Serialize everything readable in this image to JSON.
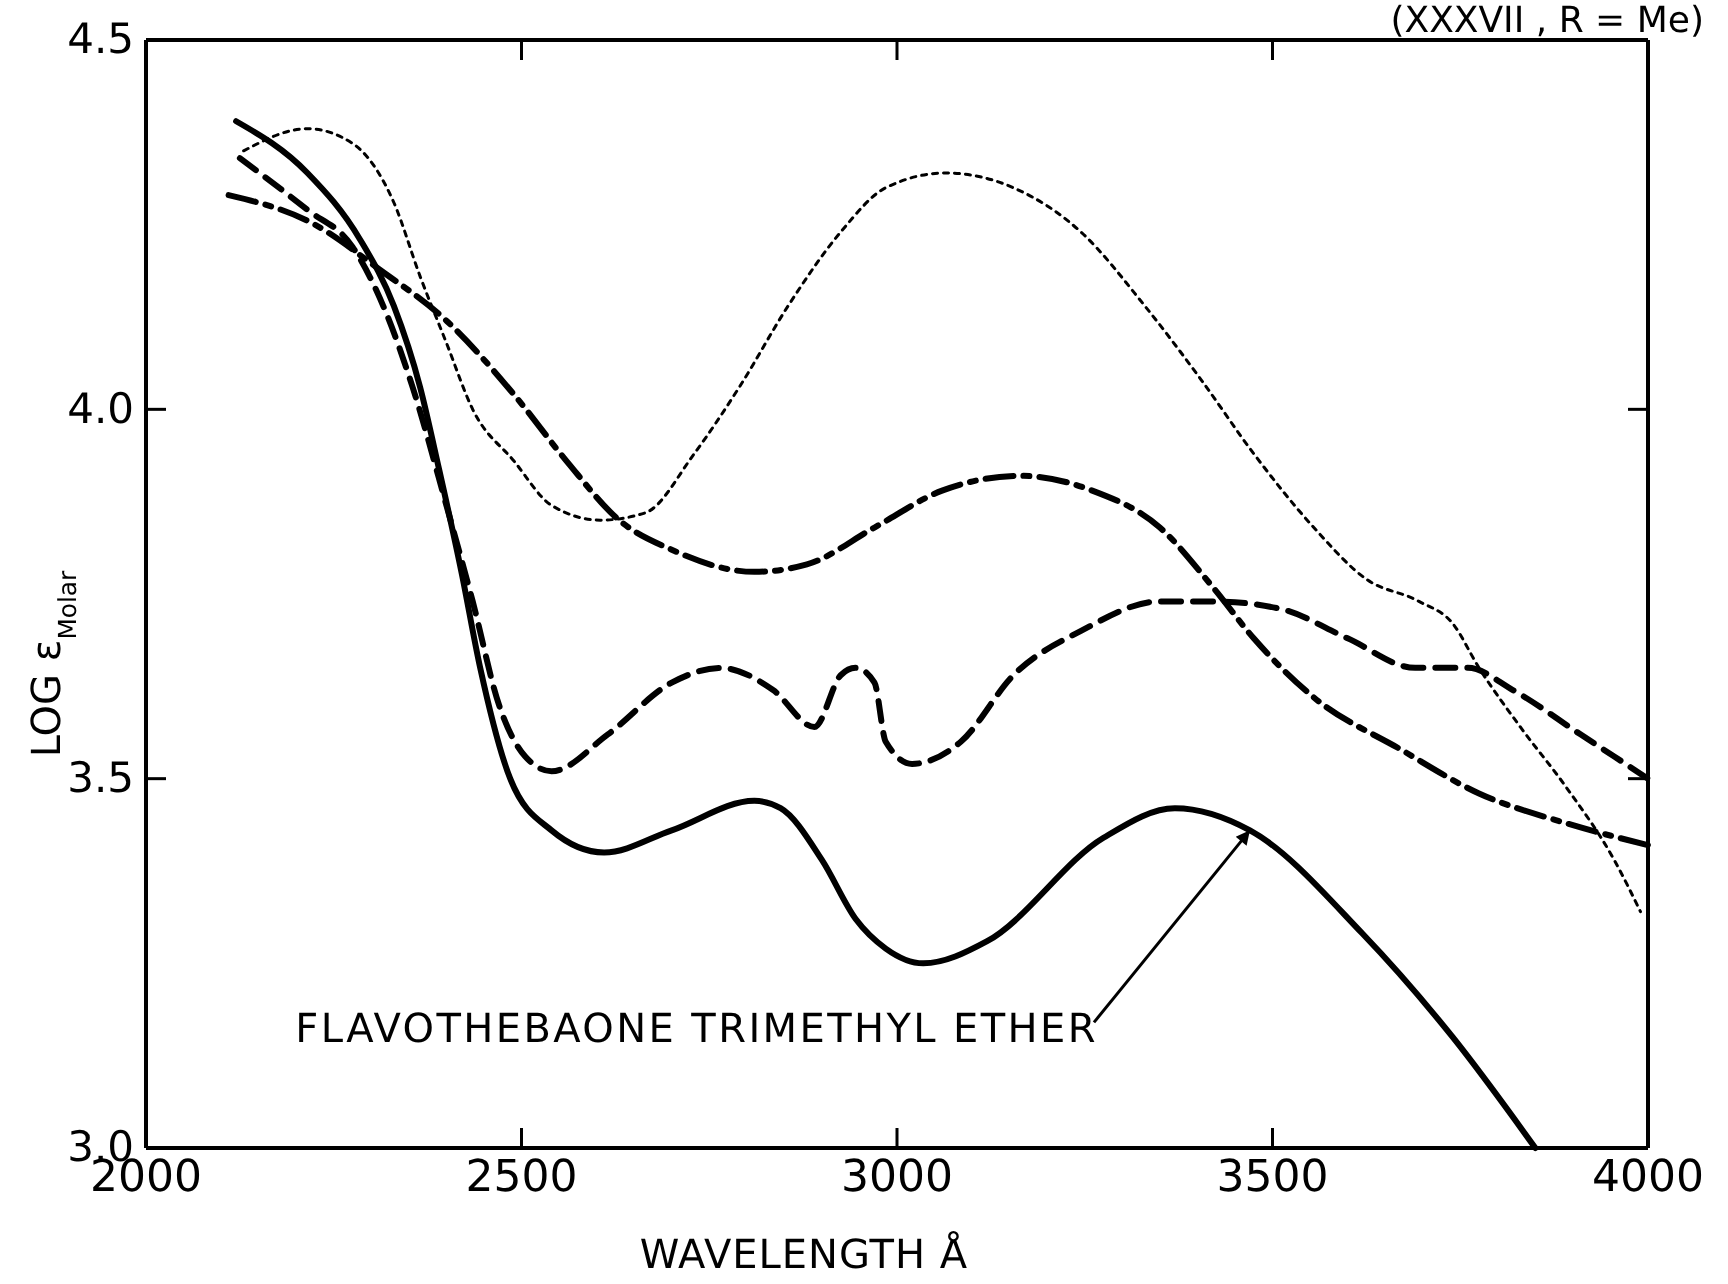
{
  "chart_data": {
    "type": "line",
    "xlabel": "WAVELENGTH Å",
    "ylabel": "LOG ε$_{Molar}$",
    "xlim": [
      2000,
      4000
    ],
    "xticks": [
      2000,
      2500,
      3000,
      3500,
      4000
    ],
    "ylim": [
      3.0,
      4.5
    ],
    "yticks": [
      {
        "value": 3.0,
        "label": "3.0"
      },
      3.5,
      {
        "value": 4.0,
        "label": "4.0"
      },
      4.5
    ],
    "annotations": [
      "(XXXVII , R = Me)",
      {
        "text": "FLAVOTHEBAONE TRIMETHYL ETHER",
        "x": 3470,
        "y": 3.43
      }
    ],
    "series": [
      {
        "color": "#000000",
        "line_style": "solid",
        "x": [
          2120,
          2215,
          2285,
          2330,
          2365,
          2390,
          2420,
          2445,
          2485,
          2540,
          2610,
          2700,
          2810,
          2845,
          2900,
          2945,
          2985,
          3035,
          3120,
          3275,
          3370,
          3470,
          3620,
          3740,
          3850
        ],
        "values": [
          4.39,
          4.32,
          4.23,
          4.14,
          4.03,
          3.92,
          3.78,
          3.65,
          3.5,
          3.43,
          3.4,
          3.43,
          3.47,
          3.46,
          3.39,
          3.31,
          3.27,
          3.25,
          3.28,
          3.42,
          3.46,
          3.43,
          3.29,
          3.15,
          3.0
        ]
      },
      {
        "color": "#000000",
        "line_style": "dashed",
        "x": [
          2125,
          2215,
          2275,
          2320,
          2355,
          2400,
          2435,
          2470,
          2505,
          2540,
          2615,
          2700,
          2765,
          2835,
          2890,
          2925,
          2945,
          2970,
          2985,
          3020,
          3085,
          3155,
          3245,
          3350,
          3420,
          3510,
          3600,
          3690,
          3760,
          3820,
          3910,
          4000
        ],
        "values": [
          4.34,
          4.27,
          4.22,
          4.13,
          4.03,
          3.87,
          3.74,
          3.6,
          3.53,
          3.51,
          3.56,
          3.63,
          3.65,
          3.62,
          3.57,
          3.64,
          3.65,
          3.63,
          3.55,
          3.52,
          3.55,
          3.64,
          3.7,
          3.74,
          3.74,
          3.73,
          3.69,
          3.65,
          3.65,
          3.62,
          3.56,
          3.5
        ]
      },
      {
        "color": "#000000",
        "line_style": "dashdot",
        "x": [
          2110,
          2225,
          2310,
          2400,
          2490,
          2560,
          2630,
          2700,
          2810,
          2880,
          2970,
          3060,
          3165,
          3260,
          3350,
          3420,
          3475,
          3555,
          3670,
          3775,
          3890,
          4000
        ],
        "values": [
          4.29,
          4.25,
          4.19,
          4.12,
          4.02,
          3.93,
          3.85,
          3.81,
          3.78,
          3.79,
          3.84,
          3.89,
          3.91,
          3.89,
          3.84,
          3.76,
          3.69,
          3.61,
          3.54,
          3.48,
          3.44,
          3.41
        ]
      },
      {
        "color": "#000000",
        "line_style": "dotted",
        "x": [
          2130,
          2215,
          2275,
          2330,
          2365,
          2400,
          2435,
          2490,
          2540,
          2605,
          2665,
          2730,
          2790,
          2855,
          2925,
          2985,
          3065,
          3155,
          3245,
          3330,
          3405,
          3475,
          3555,
          3625,
          3695,
          3740,
          3775,
          3830,
          3890,
          3955,
          3990
        ],
        "values": [
          4.35,
          4.38,
          4.36,
          4.28,
          4.18,
          4.09,
          4.0,
          3.93,
          3.87,
          3.85,
          3.86,
          3.94,
          4.03,
          4.14,
          4.24,
          4.3,
          4.32,
          4.3,
          4.24,
          4.14,
          4.04,
          3.94,
          3.84,
          3.77,
          3.74,
          3.71,
          3.65,
          3.57,
          3.49,
          3.39,
          3.32
        ]
      }
    ]
  }
}
